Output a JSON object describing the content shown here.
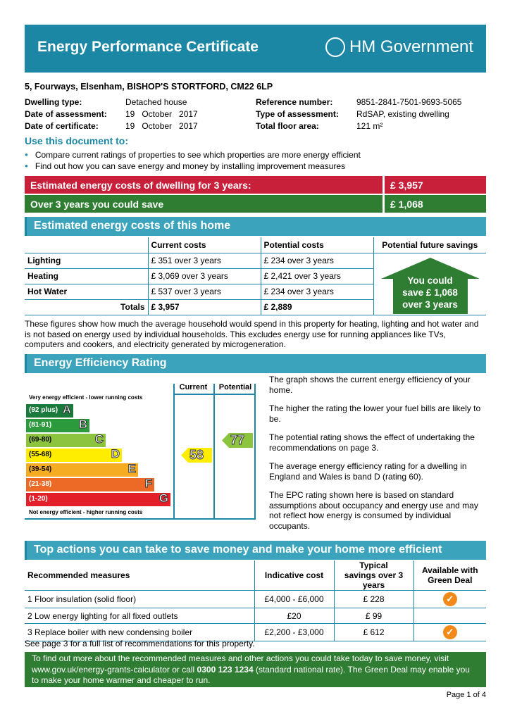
{
  "header": {
    "title": "Energy Performance Certificate",
    "logo_text": "HM Government"
  },
  "address": "5, Fourways, Elsenham, BISHOP'S STORTFORD, CM22 6LP",
  "details": {
    "left": [
      {
        "label": "Dwelling type:",
        "value": "Detached house"
      },
      {
        "label": "Date of assessment:",
        "value": "19   October   2017"
      },
      {
        "label": "Date of certificate:",
        "value": "19   October   2017"
      }
    ],
    "right": [
      {
        "label": "Reference number:",
        "value": "9851-2841-7501-9693-5065"
      },
      {
        "label": "Type of assessment:",
        "value": "RdSAP, existing dwelling"
      },
      {
        "label": "Total floor area:",
        "value": "121 m²"
      }
    ]
  },
  "use": {
    "title": "Use this document to:",
    "items": [
      "Compare current ratings of properties to see which properties are more energy efficient",
      "Find out how you can save energy and money by installing improvement measures"
    ]
  },
  "summary": {
    "cost_label": "Estimated energy costs of dwelling for 3 years:",
    "cost_value": "£ 3,957",
    "save_label": "Over 3 years you could save",
    "save_value": "£ 1,068",
    "colors": {
      "cost": "#c8203a",
      "save": "#2e7d32"
    }
  },
  "costs": {
    "title": "Estimated energy costs of this home",
    "headers": [
      "",
      "Current costs",
      "Potential costs",
      "Potential future savings"
    ],
    "rows": [
      {
        "label": "Lighting",
        "current": "£ 351 over 3 years",
        "potential": "£ 234 over 3 years"
      },
      {
        "label": "Heating",
        "current": "£ 3,069 over 3 years",
        "potential": "£ 2,421 over 3 years"
      },
      {
        "label": "Hot Water",
        "current": "£ 537 over 3 years",
        "potential": "£ 234 over 3 years"
      }
    ],
    "totals_label": "Totals",
    "total_current": "£ 3,957",
    "total_potential": "£ 2,889",
    "savings_house": [
      "You could",
      "save £ 1,068",
      "over 3 years"
    ],
    "note": "These figures show how much the average household would spend in this property for heating, lighting and hot water and is not based on energy used by individual households. This excludes energy use for running appliances like TVs, computers and cookers, and electricity generated by microgeneration."
  },
  "rating": {
    "title": "Energy Efficiency Rating",
    "col_current": "Current",
    "col_potential": "Potential",
    "top_label": "Very energy efficient - lower running costs",
    "bottom_label": "Not energy efficient - higher running costs",
    "bands": [
      {
        "range": "(92 plus)",
        "letter": "A",
        "color": "#1a7a3c"
      },
      {
        "range": "(81-91)",
        "letter": "B",
        "color": "#2a9a3c"
      },
      {
        "range": "(69-80)",
        "letter": "C",
        "color": "#8cc43f"
      },
      {
        "range": "(55-68)",
        "letter": "D",
        "color": "#ffed00"
      },
      {
        "range": "(39-54)",
        "letter": "E",
        "color": "#f6ac22"
      },
      {
        "range": "(21-38)",
        "letter": "F",
        "color": "#ec6a25"
      },
      {
        "range": "(1-20)",
        "letter": "G",
        "color": "#e3202a"
      }
    ],
    "current": "58",
    "current_band": "D",
    "potential": "77",
    "potential_band": "C",
    "explanations": [
      "The graph shows the current energy efficiency of your home.",
      "The higher the rating the lower your fuel bills are likely to be.",
      "The potential rating shows the effect of undertaking the recommendations on page 3.",
      "The average energy efficiency rating for a dwelling in England and Wales is band D (rating 60).",
      "The EPC rating shown here is based on standard assumptions about occupancy and energy use and may not reflect how energy is consumed by individual occupants."
    ]
  },
  "actions": {
    "title": "Top actions you can take to save money and make your home more efficient",
    "headers": [
      "Recommended measures",
      "Indicative cost",
      "Typical savings over 3 years",
      "Available with Green Deal"
    ],
    "rows": [
      {
        "measure": "1  Floor insulation (solid floor)",
        "cost": "£4,000 - £6,000",
        "saving": "£ 228",
        "green_deal": true
      },
      {
        "measure": "2  Low energy lighting for all fixed outlets",
        "cost": "£20",
        "saving": "£ 99",
        "green_deal": false
      },
      {
        "measure": "3  Replace boiler with new condensing boiler",
        "cost": "£2,200 - £3,000",
        "saving": "£ 612",
        "green_deal": true
      }
    ],
    "see_more": "See page 3 for a full list of recommendations for this property.",
    "info_a": "To find out more about the recommended measures and other actions you could take today to save money, visit www.gov.uk/energy-grants-calculator or call ",
    "info_phone": "0300 123 1234",
    "info_b": " (standard national rate). The Green Deal may enable you to make your home warmer and cheaper to run."
  },
  "footer": {
    "page": "Page 1 of 4"
  }
}
